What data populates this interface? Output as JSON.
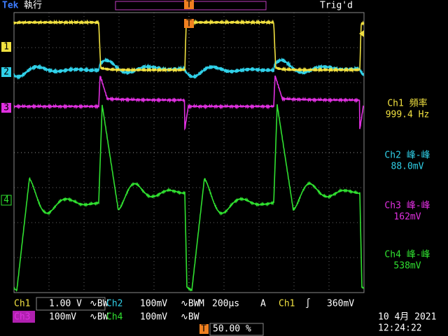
{
  "header": {
    "brand": "Tek",
    "run_state": "執行",
    "trigger_state": "Trig'd"
  },
  "channel_markers": [
    "1",
    "2",
    "3",
    "4"
  ],
  "trigger_markers": {
    "top": "T",
    "bottom": "T"
  },
  "measurements": [
    {
      "label": "Ch1 頻率",
      "value": "999.4 Hz"
    },
    {
      "label": "Ch2 峰-峰",
      "value": "88.0mV"
    },
    {
      "label": "Ch3 峰-峰",
      "value": "162mV"
    },
    {
      "label": "Ch4 峰-峰",
      "value": "538mV"
    }
  ],
  "settings": {
    "ch1": {
      "name": "Ch1",
      "scale": "1.00 V",
      "bw": "∿BW"
    },
    "ch2": {
      "name": "Ch2",
      "scale": "100mV",
      "bw": "∿BW"
    },
    "ch3": {
      "name": "Ch3",
      "scale": "100mV",
      "bw": "∿BW"
    },
    "ch4": {
      "name": "Ch4",
      "scale": "100mV",
      "bw": "∿BW"
    },
    "timebase": {
      "label": "M",
      "value": "200µs"
    },
    "trigger": {
      "mode": "A",
      "source": "Ch1",
      "slope": "∫",
      "level": "360mV"
    },
    "position": "50.00 %"
  },
  "datetime": {
    "date": "10 4月  2021",
    "time": "12:24:22"
  }
}
